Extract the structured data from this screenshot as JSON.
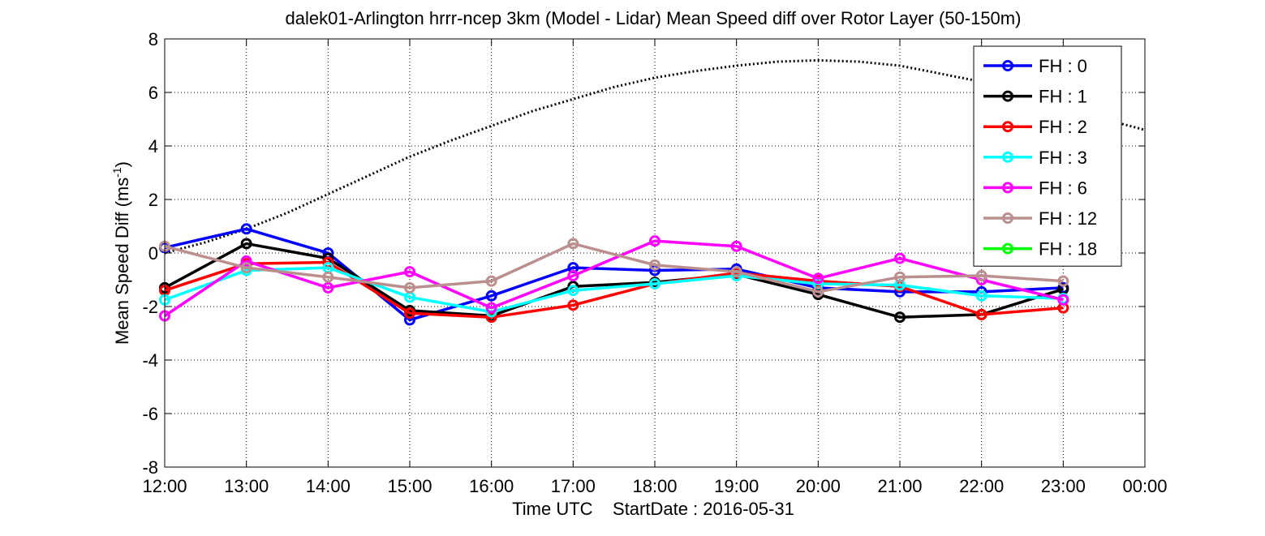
{
  "chart_data": {
    "type": "line",
    "title": "dalek01-Arlington hrrr-ncep 3km (Model - Lidar) Mean Speed diff over Rotor Layer (50-150m)",
    "xlabel": "Time UTC    StartDate : 2016-05-31",
    "ylabel": "Mean Speed Diff (ms",
    "ylabel_sup": "-1",
    "ylabel_close": ")",
    "ylim": [
      -8,
      8
    ],
    "xlim": [
      0,
      12
    ],
    "yticks": [
      -8,
      -6,
      -4,
      -2,
      0,
      2,
      4,
      6,
      8
    ],
    "ytick_labels": [
      "-8",
      "-6",
      "-4",
      "-2",
      "0",
      "2",
      "4",
      "6",
      "8"
    ],
    "xtick_labels": [
      "12:00",
      "13:00",
      "14:00",
      "15:00",
      "16:00",
      "17:00",
      "18:00",
      "19:00",
      "20:00",
      "21:00",
      "22:00",
      "23:00",
      "00:00"
    ],
    "grid": true,
    "legend_position": "top-right",
    "series": [
      {
        "name": "FH : 0",
        "color": "#0000ff",
        "values": [
          0.2,
          0.9,
          0.0,
          -2.5,
          -1.6,
          -0.55,
          -0.65,
          -0.6,
          -1.3,
          -1.45,
          -1.45,
          -1.3
        ]
      },
      {
        "name": "FH : 1",
        "color": "#000000",
        "values": [
          -1.3,
          0.35,
          -0.2,
          -2.15,
          -2.35,
          -1.25,
          -1.1,
          -0.8,
          -1.55,
          -2.4,
          -2.3,
          -1.35
        ]
      },
      {
        "name": "FH : 2",
        "color": "#ff0000",
        "values": [
          -1.4,
          -0.4,
          -0.35,
          -2.25,
          -2.4,
          -1.95,
          -1.15,
          -0.75,
          -1.05,
          -1.25,
          -2.3,
          -2.05
        ]
      },
      {
        "name": "FH : 3",
        "color": "#00ffff",
        "values": [
          -1.75,
          -0.65,
          -0.55,
          -1.65,
          -2.2,
          -1.4,
          -1.15,
          -0.85,
          -1.15,
          -1.2,
          -1.6,
          -1.7
        ]
      },
      {
        "name": "FH : 6",
        "color": "#ff00ff",
        "values": [
          -2.35,
          -0.3,
          -1.3,
          -0.7,
          -2.05,
          -0.85,
          0.45,
          0.25,
          -0.95,
          -0.2,
          -1.0,
          -1.75
        ]
      },
      {
        "name": "FH : 12",
        "color": "#bc8f8f",
        "values": [
          0.25,
          -0.55,
          -0.9,
          -1.3,
          -1.05,
          0.35,
          -0.45,
          -0.7,
          -1.45,
          -0.9,
          -0.85,
          -1.05
        ]
      },
      {
        "name": "FH : 18",
        "color": "#00ff00",
        "values": []
      }
    ],
    "reference_curve": {
      "style": "dotted",
      "color": "#000000",
      "x": [
        0,
        0.5,
        1,
        1.5,
        2,
        2.5,
        3,
        3.5,
        4,
        4.5,
        5,
        5.5,
        6,
        6.5,
        7,
        7.5,
        8,
        8.5,
        9,
        9.5,
        10,
        10.5,
        11,
        11.5,
        12
      ],
      "values": [
        0.0,
        0.4,
        0.9,
        1.5,
        2.2,
        2.9,
        3.6,
        4.2,
        4.75,
        5.3,
        5.75,
        6.2,
        6.55,
        6.8,
        7.0,
        7.15,
        7.2,
        7.15,
        7.0,
        6.7,
        6.4,
        6.0,
        5.5,
        5.0,
        4.6
      ]
    }
  }
}
